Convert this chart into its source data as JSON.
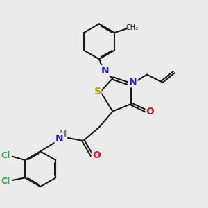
{
  "bg_color": "#ebebeb",
  "bond_color": "#1a1a1a",
  "bond_width": 1.5,
  "atoms": {
    "S": {
      "color": "#bbaa00",
      "fontsize": 10
    },
    "N": {
      "color": "#2222cc",
      "fontsize": 10
    },
    "O": {
      "color": "#cc2222",
      "fontsize": 10
    },
    "Cl": {
      "color": "#33aa33",
      "fontsize": 9
    },
    "H": {
      "color": "#777777",
      "fontsize": 9
    }
  },
  "figure_size": [
    3.0,
    3.0
  ],
  "dpi": 100
}
